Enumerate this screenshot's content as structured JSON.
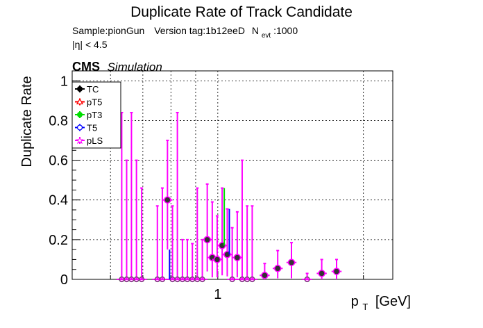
{
  "chart_data": {
    "type": "scatter",
    "title": "Duplicate Rate of Track Candidate",
    "info": {
      "sample": "Sample:pionGun",
      "version": "Version tag:1b12eeD",
      "nevt_prefix": "N",
      "nevt_sub": "evt",
      "nevt_value": ":1000",
      "eta_cut": "|η| < 4.5"
    },
    "cms_label": "CMS",
    "cms_sub": "Simulation",
    "xlabel_main": "p",
    "xlabel_sub": "T",
    "xlabel_unit": "[GeV]",
    "ylabel": "Duplicate Rate",
    "xscale": "log",
    "xlim": [
      0.5,
      2.3
    ],
    "ylim": [
      0,
      1.05
    ],
    "grid": true,
    "legend_position": "top-left",
    "x_ticks": [
      {
        "value": 1,
        "label": "1"
      }
    ],
    "y_ticks": [
      {
        "value": 0,
        "label": "0"
      },
      {
        "value": 0.2,
        "label": "0.2"
      },
      {
        "value": 0.4,
        "label": "0.4"
      },
      {
        "value": 0.6,
        "label": "0.6"
      },
      {
        "value": 0.8,
        "label": "0.8"
      },
      {
        "value": 1,
        "label": "1"
      }
    ],
    "series": [
      {
        "name": "TC",
        "color": "#000000",
        "marker": "filled-circle"
      },
      {
        "name": "pT5",
        "color": "#ff0000",
        "marker": "open-triangle"
      },
      {
        "name": "pT3",
        "color": "#00dd00",
        "marker": "filled-circle"
      },
      {
        "name": "T5",
        "color": "#0000ff",
        "marker": "open-circle"
      },
      {
        "name": "pLS",
        "color": "#ff00ff",
        "marker": "open-star"
      }
    ],
    "points": [
      {
        "x": 0.633,
        "y": 0.0,
        "err_up": 0.84
      },
      {
        "x": 0.648,
        "y": 0.0,
        "err_up": 0.6
      },
      {
        "x": 0.663,
        "y": 0.0,
        "err_up": 0.84
      },
      {
        "x": 0.679,
        "y": 0.0,
        "err_up": 0.6
      },
      {
        "x": 0.696,
        "y": 0.0,
        "err_up": 0.46
      },
      {
        "x": 0.75,
        "y": 0.0,
        "err_up": 0.37
      },
      {
        "x": 0.768,
        "y": 0.0,
        "err_up": 0.46
      },
      {
        "x": 0.787,
        "y": 0.4,
        "err_up": 0.3,
        "err_down": 0.25
      },
      {
        "x": 0.806,
        "y": 0.0,
        "err_up": 0.37
      },
      {
        "x": 0.825,
        "y": 0.0,
        "err_up": 0.84
      },
      {
        "x": 0.845,
        "y": 0.0,
        "err_up": 0.2
      },
      {
        "x": 0.865,
        "y": 0.0,
        "err_up": 0.2
      },
      {
        "x": 0.886,
        "y": 0.0,
        "err_up": 0.18
      },
      {
        "x": 0.907,
        "y": 0.0,
        "err_up": 0.46
      },
      {
        "x": 0.929,
        "y": 0.0,
        "err_up": 0.2
      },
      {
        "x": 0.951,
        "y": 0.2,
        "err_up": 0.28,
        "err_down": 0.16
      },
      {
        "x": 0.974,
        "y": 0.11,
        "err_up": 0.28,
        "err_down": 0.1
      },
      {
        "x": 0.997,
        "y": 0.1,
        "err_up": 0.22,
        "err_down": 0.09
      },
      {
        "x": 1.021,
        "y": 0.17,
        "err_up": 0.29,
        "err_down": 0.15
      },
      {
        "x": 1.046,
        "y": 0.125,
        "err_up": 0.23,
        "err_down": 0.11
      },
      {
        "x": 1.071,
        "y": 0.0,
        "err_up": 0.26
      },
      {
        "x": 1.097,
        "y": 0.11,
        "err_up": 0.23,
        "err_down": 0.1
      },
      {
        "x": 1.123,
        "y": 0.0,
        "err_up": 0.6
      },
      {
        "x": 1.15,
        "y": 0.0,
        "err_up": 0.37
      },
      {
        "x": 1.178,
        "y": 0.0,
        "err_up": 0.37
      },
      {
        "x": 1.25,
        "y": 0.02,
        "err_up": 0.06,
        "err_down": 0.02
      },
      {
        "x": 1.33,
        "y": 0.055,
        "err_up": 0.09,
        "err_down": 0.05
      },
      {
        "x": 1.42,
        "y": 0.085,
        "err_up": 0.1,
        "err_down": 0.08
      },
      {
        "x": 1.53,
        "y": 0.0,
        "err_up": 0.03
      },
      {
        "x": 1.64,
        "y": 0.03,
        "err_up": 0.07,
        "err_down": 0.03
      },
      {
        "x": 1.76,
        "y": 0.04,
        "err_up": 0.06,
        "err_down": 0.04
      }
    ],
    "series_highlights": [
      {
        "series": "pT3",
        "x": 1.021,
        "y": 0.17,
        "err_up": 0.29
      },
      {
        "series": "T5",
        "x": 1.046,
        "y": 0.125,
        "err_up": 0.23
      },
      {
        "series": "T5",
        "x": 0.787,
        "y": 0.0,
        "err_up": 0.15
      }
    ]
  }
}
